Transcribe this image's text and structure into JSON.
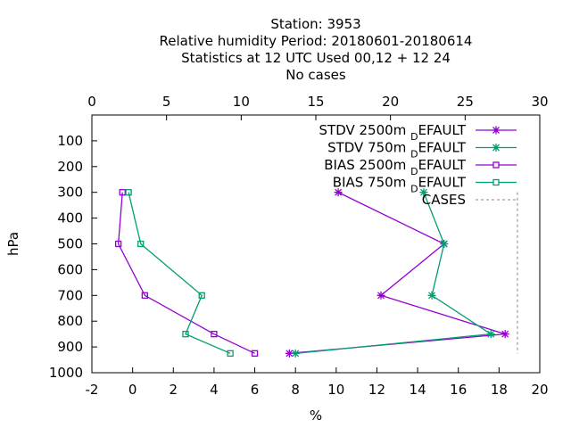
{
  "chart_data": {
    "type": "line",
    "title_lines": [
      "Station:     3953",
      "Relative humidity  Period: 20180601-20180614",
      "Statistics at 12 UTC  Used  00,12  + 12 24",
      "No cases"
    ],
    "xlabel": "%",
    "ylabel": "hPa",
    "xlim": [
      -2,
      20
    ],
    "x2lim": [
      0,
      30
    ],
    "ylim": [
      1000,
      0
    ],
    "x_ticks": [
      "-2",
      "0",
      "2",
      "4",
      "6",
      "8",
      "10",
      "12",
      "14",
      "16",
      "18",
      "20"
    ],
    "x2_ticks": [
      "0",
      "5",
      "10",
      "15",
      "20",
      "25",
      "30"
    ],
    "y_ticks": [
      "100",
      "200",
      "300",
      "400",
      "500",
      "600",
      "700",
      "800",
      "900",
      "1000"
    ],
    "grid": false,
    "legend_position": "top-right",
    "series": [
      {
        "name": "STDV 2500m_DEFAULT",
        "legend_main": "STDV 2500m",
        "legend_sub": "D",
        "legend_tail": "EFAULT",
        "marker": "x",
        "color": "#9400d3",
        "x": [
          10.1,
          15.3,
          12.2,
          18.3,
          7.7
        ],
        "y": [
          300,
          500,
          700,
          850,
          925
        ]
      },
      {
        "name": "STDV 750m_DEFAULT",
        "legend_main": "STDV 750m",
        "legend_sub": "D",
        "legend_tail": "EFAULT",
        "marker": "x",
        "color": "#009e73",
        "x": [
          14.3,
          15.3,
          14.7,
          17.6,
          8.0
        ],
        "y": [
          300,
          500,
          700,
          850,
          925
        ]
      },
      {
        "name": "BIAS 2500m_DEFAULT",
        "legend_main": "BIAS 2500m",
        "legend_sub": "D",
        "legend_tail": "EFAULT",
        "marker": "square",
        "color": "#9400d3",
        "x": [
          -0.5,
          -0.7,
          0.6,
          4.0,
          6.0
        ],
        "y": [
          300,
          500,
          700,
          850,
          925
        ]
      },
      {
        "name": "BIAS 750m_DEFAULT",
        "legend_main": "BIAS 750m",
        "legend_sub": "D",
        "legend_tail": "EFAULT",
        "marker": "square",
        "color": "#009e73",
        "x": [
          -0.2,
          0.4,
          3.4,
          2.6,
          4.8
        ],
        "y": [
          300,
          500,
          700,
          850,
          925
        ]
      },
      {
        "name": "CASES",
        "legend_main": "CASES",
        "legend_sub": "",
        "legend_tail": "",
        "marker": "none",
        "color": "#a0a0a0",
        "dashed": true,
        "axis": "x2",
        "x": [
          28.5,
          28.5
        ],
        "y": [
          300,
          925
        ]
      }
    ]
  }
}
